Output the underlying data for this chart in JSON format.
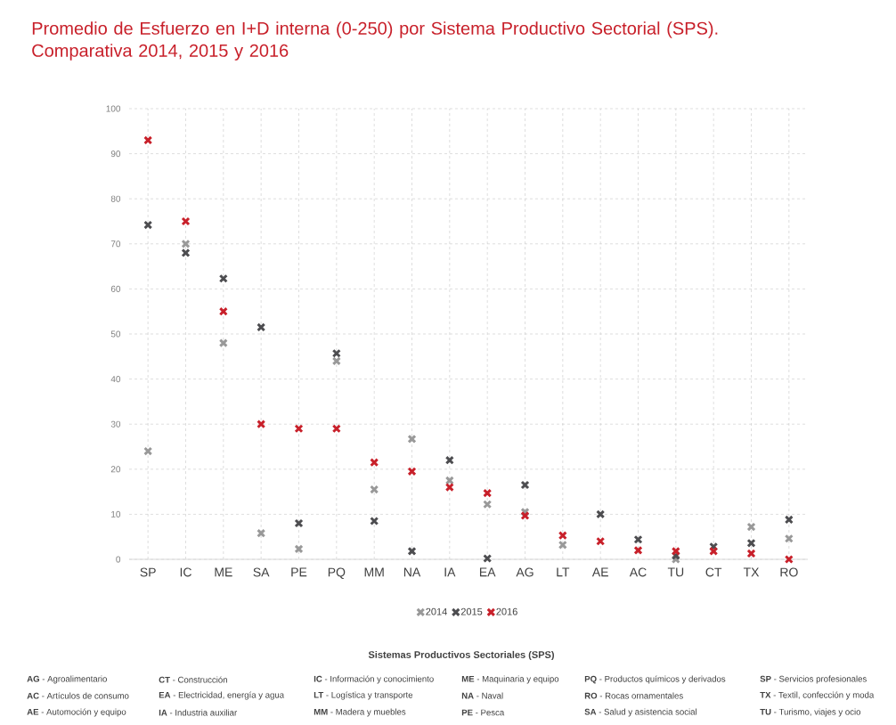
{
  "chart_data": {
    "type": "scatter",
    "title": "Promedio de Esfuerzo en I+D interna  (0-250) por Sistema Productivo Sectorial (SPS). Comparativa 2014, 2015 y 2016",
    "categories": [
      "SP",
      "IC",
      "ME",
      "SA",
      "PE",
      "PQ",
      "MM",
      "NA",
      "IA",
      "EA",
      "AG",
      "LT",
      "AE",
      "AC",
      "TU",
      "CT",
      "TX",
      "RO"
    ],
    "series": [
      {
        "name": "2014",
        "color": "#999999",
        "values": [
          24,
          70,
          48,
          5.8,
          2.3,
          44,
          15.5,
          26.7,
          17.5,
          12.2,
          10.5,
          3.2,
          null,
          null,
          0,
          null,
          7.2,
          4.6
        ]
      },
      {
        "name": "2015",
        "color": "#4d4d50",
        "values": [
          74.2,
          68,
          62.3,
          51.5,
          8,
          45.7,
          8.5,
          1.8,
          22,
          0.2,
          16.5,
          null,
          10,
          4.4,
          0.8,
          2.8,
          3.6,
          8.8
        ]
      },
      {
        "name": "2016",
        "color": "#c8202a",
        "values": [
          93,
          75,
          55,
          30,
          29,
          29,
          21.5,
          19.5,
          16,
          14.7,
          9.7,
          5.3,
          4,
          2,
          1.8,
          1.8,
          1.3,
          0
        ]
      }
    ],
    "ylim": [
      0,
      100
    ],
    "yticks": [
      0,
      10,
      20,
      30,
      40,
      50,
      60,
      70,
      80,
      90,
      100
    ],
    "grid": true,
    "legend": "bottom",
    "marker": "cross",
    "annotations": [
      "Sistemas Productivos Sectoriales (SPS)",
      "**AG** - Agroalimentario",
      "**CT** - Construcción",
      "**IC** - Información y conocimiento",
      "**ME** - Maquinaria y equipo",
      "**PQ** - Productos químicos y derivados",
      "**SP** - Servicios profesionales",
      "**AC** - Artículos de consumo",
      "**EA** - Electricidad, energía y agua",
      "**LT** - Logística y transporte",
      "**NA** - Naval",
      "**RO** - Rocas ornamentales",
      "**TX** - Textil, confección y moda",
      "**AE** - Automoción y equipo",
      "**IA** - Industria auxiliar",
      "**MM** - Madera y muebles",
      "**PE** - Pesca",
      "**SA** - Salud y asistencia social",
      "**TU** - Turismo, viajes y ocio"
    ]
  }
}
